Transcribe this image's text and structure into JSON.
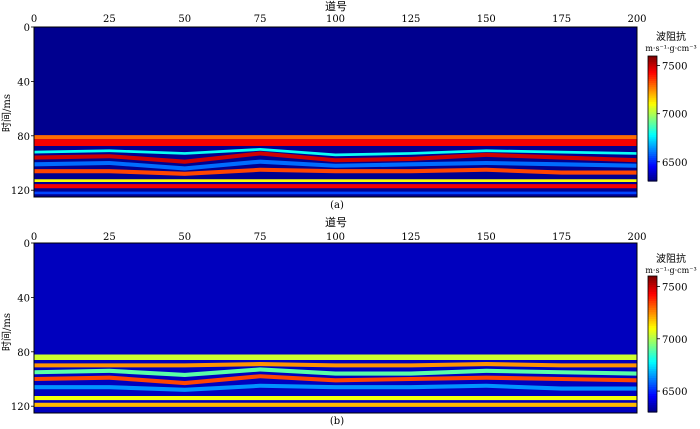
{
  "chart_data": [
    {
      "type": "heatmap",
      "panel_label": "(a)",
      "xlabel": "道号",
      "ylabel": "时间/ms",
      "xlim": [
        0,
        200
      ],
      "ylim": [
        0,
        125
      ],
      "x_ticks": [
        0,
        25,
        50,
        75,
        100,
        125,
        150,
        175,
        200
      ],
      "y_ticks": [
        0,
        40,
        80,
        120
      ],
      "colorbar": {
        "title": "波阻抗",
        "unit": "m·s⁻¹·g·cm⁻³",
        "range": [
          6300,
          7600
        ],
        "ticks": [
          6500,
          7000,
          7500
        ]
      },
      "background_value": 6320,
      "layers": [
        {
          "time_ms": [
            81,
            81,
            81,
            81,
            81,
            81,
            81,
            81,
            81
          ],
          "thickness_ms": 3,
          "value": 7300
        },
        {
          "time_ms": [
            85,
            85,
            85,
            85,
            85,
            85,
            85,
            85,
            85
          ],
          "thickness_ms": 5,
          "value": 7450
        },
        {
          "time_ms": [
            92,
            91,
            93,
            90,
            94,
            93,
            91,
            92,
            93
          ],
          "thickness_ms": 2,
          "value": 6800
        },
        {
          "time_ms": [
            96,
            95,
            99,
            93,
            98,
            97,
            94,
            96,
            98
          ],
          "thickness_ms": 3,
          "value": 7500
        },
        {
          "time_ms": [
            101,
            100,
            104,
            99,
            102,
            101,
            100,
            101,
            102
          ],
          "thickness_ms": 3,
          "value": 6600
        },
        {
          "time_ms": [
            106,
            106,
            108,
            105,
            106,
            106,
            105,
            107,
            107
          ],
          "thickness_ms": 3,
          "value": 7350
        },
        {
          "time_ms": [
            113,
            113,
            113,
            113,
            113,
            113,
            113,
            113,
            113
          ],
          "thickness_ms": 2,
          "value": 7100
        },
        {
          "time_ms": [
            117,
            117,
            117,
            117,
            117,
            117,
            117,
            117,
            117
          ],
          "thickness_ms": 3,
          "value": 7450
        },
        {
          "time_ms": [
            122,
            122,
            122,
            122,
            122,
            122,
            122,
            122,
            122
          ],
          "thickness_ms": 2,
          "value": 6550
        }
      ]
    },
    {
      "type": "heatmap",
      "panel_label": "(b)",
      "xlabel": "道号",
      "ylabel": "时间/ms",
      "xlim": [
        0,
        200
      ],
      "ylim": [
        0,
        125
      ],
      "x_ticks": [
        0,
        25,
        50,
        75,
        100,
        125,
        150,
        175,
        200
      ],
      "y_ticks": [
        0,
        40,
        80,
        120
      ],
      "colorbar": {
        "title": "波阻抗",
        "unit": "m·s⁻¹·g·cm⁻³",
        "range": [
          6300,
          7600
        ],
        "ticks": [
          6500,
          7000,
          7500
        ]
      },
      "background_value": 6380,
      "layers": [
        {
          "time_ms": [
            84,
            84,
            84,
            84,
            84,
            84,
            84,
            84,
            84
          ],
          "thickness_ms": 4,
          "value": 7050
        },
        {
          "time_ms": [
            90,
            90,
            90,
            89,
            90,
            90,
            89,
            90,
            90
          ],
          "thickness_ms": 3,
          "value": 7250
        },
        {
          "time_ms": [
            95,
            94,
            97,
            93,
            96,
            96,
            94,
            95,
            96
          ],
          "thickness_ms": 3,
          "value": 6900
        },
        {
          "time_ms": [
            100,
            99,
            103,
            98,
            101,
            100,
            99,
            100,
            101
          ],
          "thickness_ms": 3,
          "value": 7350
        },
        {
          "time_ms": [
            106,
            106,
            108,
            105,
            106,
            106,
            105,
            107,
            107
          ],
          "thickness_ms": 3,
          "value": 6650
        },
        {
          "time_ms": [
            114,
            114,
            114,
            114,
            114,
            114,
            114,
            114,
            114
          ],
          "thickness_ms": 3,
          "value": 7100
        },
        {
          "time_ms": [
            119,
            119,
            119,
            119,
            119,
            119,
            119,
            119,
            119
          ],
          "thickness_ms": 3,
          "value": 7200
        }
      ]
    }
  ]
}
